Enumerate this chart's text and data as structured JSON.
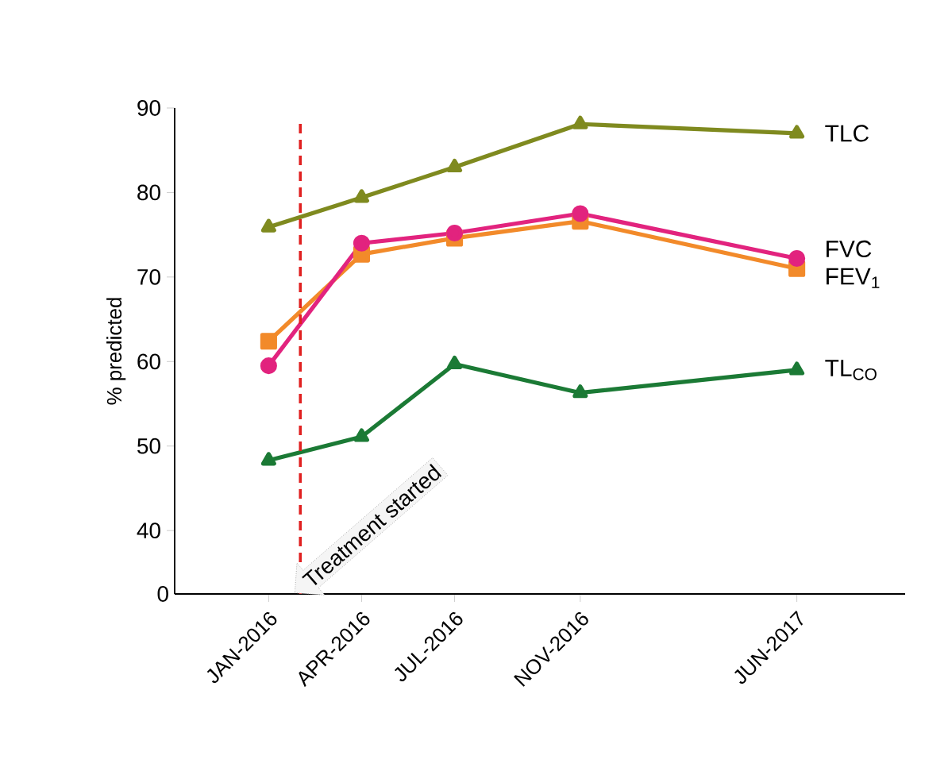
{
  "chart_data": {
    "type": "line",
    "ylabel": "% predicted",
    "x": [
      "2016-01",
      "2016-04",
      "2016-07",
      "2016-11",
      "2017-06"
    ],
    "xlim": [
      "2015-10-01",
      "2017-09-15"
    ],
    "xticks": [
      {
        "value": "2016-01",
        "label": "JAN-2016"
      },
      {
        "value": "2016-04",
        "label": "APR-2016"
      },
      {
        "value": "2016-07",
        "label": "JUL-2016"
      },
      {
        "value": "2016-11",
        "label": "NOV-2016"
      },
      {
        "value": "2017-06",
        "label": "JUN-2017"
      }
    ],
    "ylim": [
      32.5,
      90
    ],
    "yticks": [
      40,
      50,
      60,
      70,
      80,
      90
    ],
    "series": [
      {
        "name": "TLC",
        "color": "#7f8a1f",
        "marker": "triangle",
        "values": [
          75.9,
          79.4,
          83,
          88.1,
          87
        ]
      },
      {
        "name": "FVC",
        "color": "#e2237e",
        "marker": "circle",
        "values": [
          59.5,
          74,
          75.2,
          77.5,
          72.2
        ]
      },
      {
        "name": "FEV$_{1}$",
        "color": "#f28a2a",
        "marker": "square",
        "values": [
          62.4,
          72.7,
          74.6,
          76.6,
          71
        ]
      },
      {
        "name": "TL$_{CO}$",
        "color": "#1b7a35",
        "marker": "triangle",
        "values": [
          48.3,
          51.1,
          59.7,
          56.3,
          59
        ]
      }
    ],
    "ref_lines": [
      {
        "axis": "x",
        "value": "2016-02",
        "color": "#e02020",
        "line_style": "dashed"
      }
    ],
    "annotations": [
      "Treatment started",
      "0"
    ],
    "legend": false,
    "line_style": "solid"
  }
}
